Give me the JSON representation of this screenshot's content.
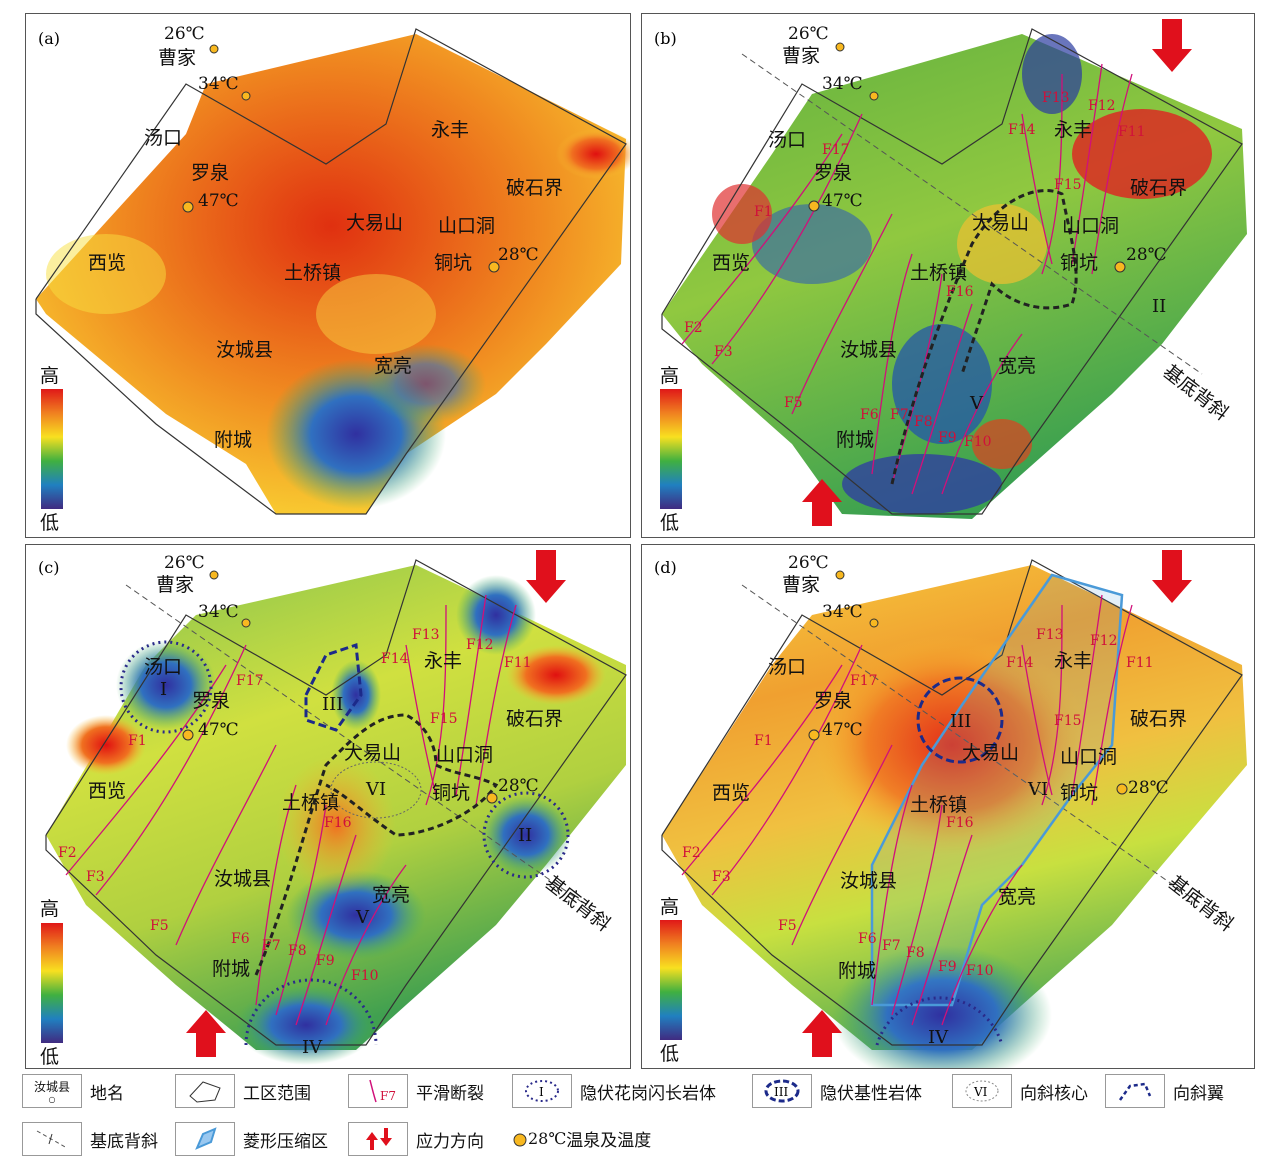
{
  "panels": [
    {
      "id": "a",
      "label": "(a)"
    },
    {
      "id": "b",
      "label": "(b)"
    },
    {
      "id": "c",
      "label": "(c)"
    },
    {
      "id": "d",
      "label": "(d)"
    }
  ],
  "places": {
    "caojia": "曹家",
    "tangkou": "汤口",
    "luoquan": "罗泉",
    "yongfeng": "永丰",
    "poshijie": "破石界",
    "dayishan": "大易山",
    "shankoudong": "山口洞",
    "tongkeng": "铜坑",
    "xilan": "西览",
    "tuqiaozhen": "土桥镇",
    "ruchengxian": "汝城县",
    "kuanliang": "宽亮",
    "fucheng": "附城"
  },
  "hot_springs": [
    {
      "name": "曹家",
      "temp": "26℃"
    },
    {
      "name": "",
      "temp": "34℃"
    },
    {
      "name": "罗泉",
      "temp": "47℃"
    },
    {
      "name": "铜坑",
      "temp": "28℃"
    }
  ],
  "faults": [
    "F1",
    "F2",
    "F3",
    "F5",
    "F6",
    "F7",
    "F8",
    "F9",
    "F10",
    "F11",
    "F12",
    "F13",
    "F14",
    "F15",
    "F16",
    "F17"
  ],
  "zones": {
    "I": "I",
    "II": "II",
    "III": "III",
    "IV": "IV",
    "V": "V",
    "VI": "VI"
  },
  "colorbar": {
    "high": "高",
    "low": "低"
  },
  "anticline_label": "基底背斜",
  "colors": {
    "fault": "#d0107a",
    "syncline_wing": "#222",
    "granite": "#2a2a8a",
    "basic": "#1c2a8a",
    "rhombus": "#4a9ad8",
    "arrow": "#e0101c"
  },
  "legend": {
    "place_sample": "汝城县",
    "place": "地名",
    "area": "工区范围",
    "fault_sample": "F7",
    "fault": "平滑断裂",
    "granite_sample": "I",
    "granite": "隐伏花岗闪长岩体",
    "basic_sample": "III",
    "basic": "隐伏基性岩体",
    "syncline_sample": "VI",
    "syncline": "向斜核心",
    "wing": "向斜翼",
    "anticline": "基底背斜",
    "rhombus": "菱形压缩区",
    "stress": "应力方向",
    "spring_sample": "28℃",
    "spring": "温泉及温度"
  }
}
